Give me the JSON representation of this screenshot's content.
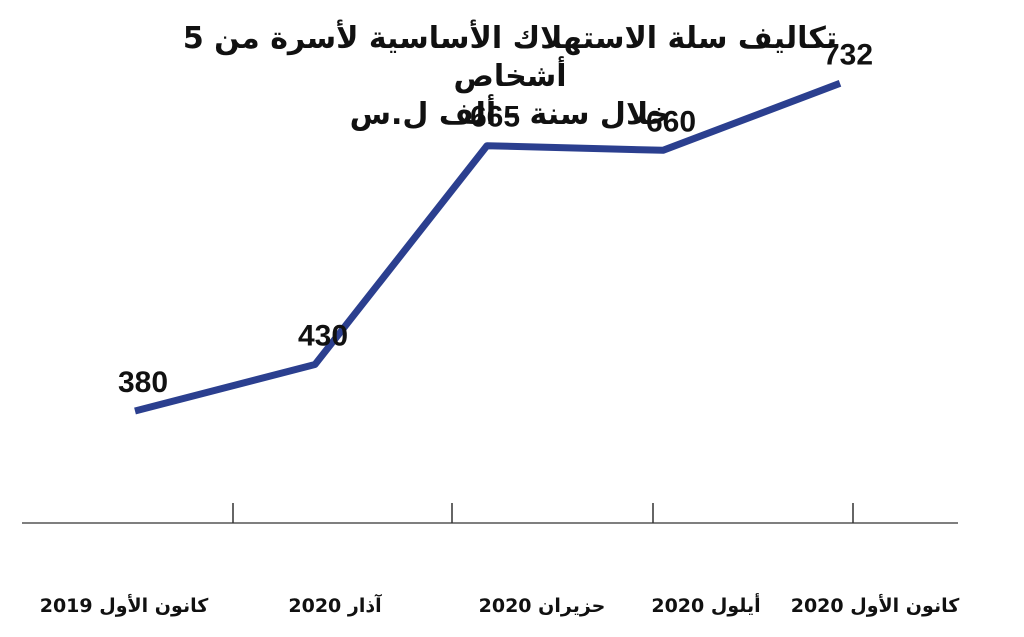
{
  "chart_data": {
    "type": "line",
    "title": "تكاليف سلة الاستهلاك الأساسية لأسرة من 5 أشخاص",
    "subtitle": "خلال سنة - ألف ل.س",
    "categories": [
      "كانون الأول 2019",
      "آذار 2020",
      "حزيران 2020",
      "أيلول 2020",
      "كانون الأول 2020"
    ],
    "values": [
      380,
      430,
      665,
      660,
      732
    ],
    "value_labels": [
      "380",
      "430",
      "665",
      "660",
      "732"
    ],
    "ylim": [
      220,
      800
    ],
    "grid": false,
    "line_color": "#2b3f8f",
    "axis_color": "#333333"
  }
}
